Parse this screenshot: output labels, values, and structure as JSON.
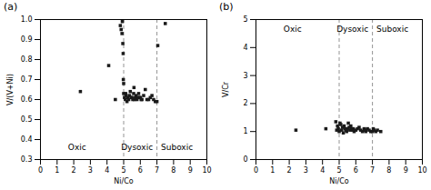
{
  "chart_data": [
    {
      "type": "scatter",
      "title": "(a)",
      "xlabel": "Ni/Co",
      "ylabel": "V/(V+Ni)",
      "xlim": [
        0,
        10
      ],
      "ylim": [
        0.3,
        1.0
      ],
      "xticks": [
        0,
        1,
        2,
        3,
        4,
        5,
        6,
        7,
        8,
        9,
        10
      ],
      "yticks": [
        0.3,
        0.4,
        0.5,
        0.6,
        0.7,
        0.8,
        0.9,
        {
          "value": 1.0,
          "label": "1.0"
        }
      ],
      "color": "#1a1a1a",
      "marker": "square",
      "vlines": [
        5,
        7
      ],
      "annotations": [
        {
          "text": "Oxic",
          "x": 2.2,
          "y": 0.36
        },
        {
          "text": "Dysoxic",
          "x": 5.8,
          "y": 0.36
        },
        {
          "text": "Suboxic",
          "x": 8.2,
          "y": 0.36
        }
      ],
      "x": [
        2.4,
        4.1,
        4.5,
        4.8,
        4.85,
        4.9,
        4.92,
        4.95,
        4.97,
        4.98,
        5.0,
        5.0,
        5.05,
        5.1,
        5.12,
        5.15,
        5.2,
        5.25,
        5.3,
        5.35,
        5.4,
        5.45,
        5.5,
        5.55,
        5.6,
        5.62,
        5.65,
        5.7,
        5.75,
        5.8,
        5.85,
        5.9,
        5.95,
        6.0,
        6.05,
        6.1,
        6.2,
        6.3,
        6.4,
        6.5,
        6.6,
        6.7,
        6.8,
        6.9,
        7.0,
        7.05,
        7.5
      ],
      "values": [
        0.64,
        0.77,
        0.6,
        0.97,
        0.95,
        0.93,
        0.99,
        0.88,
        0.83,
        0.7,
        0.68,
        0.63,
        0.61,
        0.6,
        0.63,
        0.62,
        0.59,
        0.61,
        0.6,
        0.62,
        0.64,
        0.61,
        0.61,
        0.6,
        0.63,
        0.66,
        0.6,
        0.61,
        0.62,
        0.6,
        0.61,
        0.63,
        0.61,
        0.61,
        0.6,
        0.6,
        0.62,
        0.65,
        0.6,
        0.6,
        0.61,
        0.62,
        0.6,
        0.59,
        0.59,
        0.87,
        0.98
      ]
    },
    {
      "type": "scatter",
      "title": "(b)",
      "xlabel": "Ni/Co",
      "ylabel": "V/Cr",
      "xlim": [
        0,
        10
      ],
      "ylim": [
        0,
        5
      ],
      "xticks": [
        0,
        1,
        2,
        3,
        4,
        5,
        6,
        7,
        8,
        9,
        10
      ],
      "yticks": [
        0,
        1,
        2,
        3,
        4,
        5
      ],
      "color": "#1a1a1a",
      "marker": "square",
      "vlines": [
        5,
        7
      ],
      "annotations": [
        {
          "text": "Oxic",
          "x": 2.2,
          "y": 4.65
        },
        {
          "text": "Dysoxic",
          "x": 5.8,
          "y": 4.65
        },
        {
          "text": "Suboxic",
          "x": 8.2,
          "y": 4.65
        }
      ],
      "x": [
        2.4,
        4.2,
        4.8,
        4.85,
        4.9,
        4.95,
        5.0,
        5.05,
        5.1,
        5.15,
        5.2,
        5.25,
        5.3,
        5.35,
        5.4,
        5.45,
        5.5,
        5.55,
        5.6,
        5.65,
        5.7,
        5.75,
        5.8,
        5.85,
        5.9,
        6.0,
        6.1,
        6.2,
        6.3,
        6.4,
        6.5,
        6.55,
        6.6,
        6.7,
        6.8,
        6.9,
        7.0,
        7.05,
        7.1,
        7.2,
        7.3,
        7.5
      ],
      "values": [
        1.05,
        1.1,
        1.35,
        1.05,
        1.2,
        1.1,
        1.0,
        1.3,
        1.25,
        1.05,
        1.15,
        0.95,
        1.2,
        1.1,
        1.05,
        1.0,
        1.1,
        1.3,
        1.15,
        1.05,
        1.2,
        1.1,
        1.05,
        1.1,
        1.0,
        1.05,
        1.1,
        1.15,
        1.05,
        1.0,
        1.1,
        1.05,
        1.0,
        1.1,
        1.05,
        1.0,
        1.0,
        1.1,
        1.05,
        1.0,
        1.05,
        1.0
      ]
    }
  ]
}
